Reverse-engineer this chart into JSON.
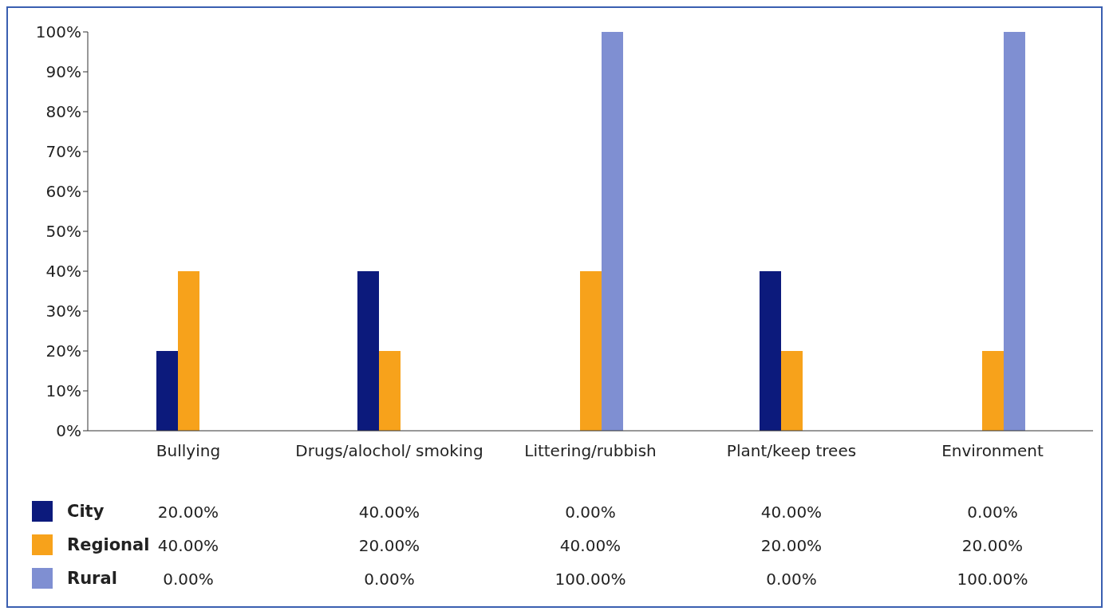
{
  "chart_data": {
    "type": "bar",
    "categories": [
      "Bullying",
      "Drugs/alochol/ smoking",
      "Littering/rubbish",
      "Plant/keep trees",
      "Environment"
    ],
    "series": [
      {
        "name": "City",
        "color": "#0c1a7c",
        "values": [
          20,
          40,
          0,
          40,
          0
        ],
        "value_labels": [
          "20.00%",
          "40.00%",
          "0.00%",
          "40.00%",
          "0.00%"
        ]
      },
      {
        "name": "Regional",
        "color": "#f7a21b",
        "values": [
          40,
          20,
          40,
          20,
          20
        ],
        "value_labels": [
          "40.00%",
          "20.00%",
          "40.00%",
          "20.00%",
          "20.00%"
        ]
      },
      {
        "name": "Rural",
        "color": "#7f8fd2",
        "values": [
          0,
          0,
          100,
          0,
          100
        ],
        "value_labels": [
          "0.00%",
          "0.00%",
          "100.00%",
          "0.00%",
          "100.00%"
        ]
      }
    ],
    "ylim": [
      0,
      100
    ],
    "yticks": [
      {
        "value": 0,
        "label": "0%"
      },
      {
        "value": 10,
        "label": "10%"
      },
      {
        "value": 20,
        "label": "20%"
      },
      {
        "value": 30,
        "label": "30%"
      },
      {
        "value": 40,
        "label": "40%"
      },
      {
        "value": 50,
        "label": "50%"
      },
      {
        "value": 60,
        "label": "60%"
      },
      {
        "value": 70,
        "label": "70%"
      },
      {
        "value": 80,
        "label": "80%"
      },
      {
        "value": 90,
        "label": "90%"
      },
      {
        "value": 100,
        "label": "100%"
      }
    ],
    "grid": false,
    "legend": "bottom"
  }
}
